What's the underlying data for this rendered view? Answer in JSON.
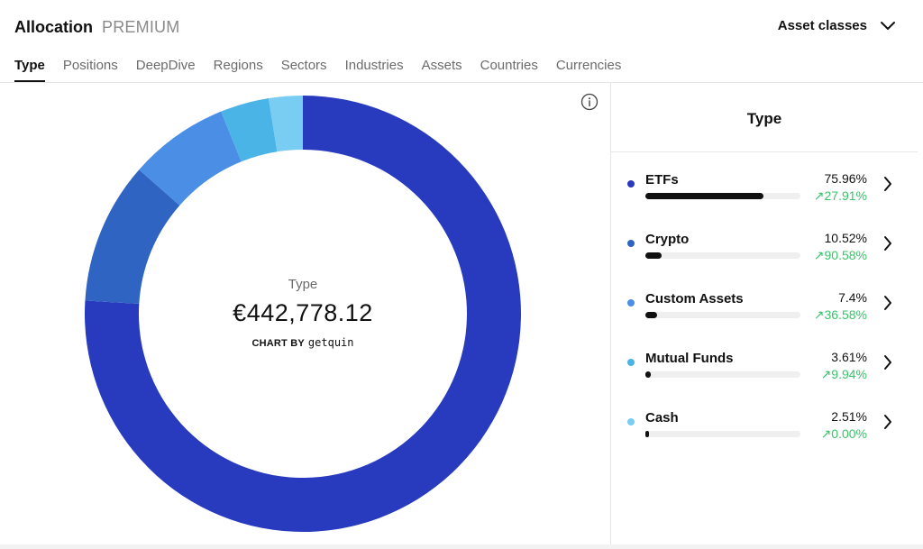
{
  "header": {
    "title": "Allocation",
    "badge": "PREMIUM",
    "selector_label": "Asset classes"
  },
  "tabs": [
    {
      "label": "Type",
      "active": true
    },
    {
      "label": "Positions",
      "active": false
    },
    {
      "label": "DeepDive",
      "active": false
    },
    {
      "label": "Regions",
      "active": false
    },
    {
      "label": "Sectors",
      "active": false
    },
    {
      "label": "Industries",
      "active": false
    },
    {
      "label": "Assets",
      "active": false
    },
    {
      "label": "Countries",
      "active": false
    },
    {
      "label": "Currencies",
      "active": false
    }
  ],
  "center": {
    "label": "Type",
    "value": "€442,778.12",
    "credit_prefix": "CHART BY",
    "credit_brand": "getquin"
  },
  "panel": {
    "title": "Type",
    "items": [
      {
        "name": "ETFs",
        "percent": "75.96%",
        "change": "↗27.91%",
        "share": 0.7596,
        "color": "#283bbf"
      },
      {
        "name": "Crypto",
        "percent": "10.52%",
        "change": "↗90.58%",
        "share": 0.1052,
        "color": "#2f64c2"
      },
      {
        "name": "Custom Assets",
        "percent": "7.4%",
        "change": "↗36.58%",
        "share": 0.074,
        "color": "#4a8ee6"
      },
      {
        "name": "Mutual Funds",
        "percent": "3.61%",
        "change": "↗9.94%",
        "share": 0.0361,
        "color": "#4bb4e6"
      },
      {
        "name": "Cash",
        "percent": "2.51%",
        "change": "↗0.00%",
        "share": 0.0251,
        "color": "#79ccf2"
      }
    ]
  },
  "chart_data": {
    "type": "pie",
    "title": "",
    "categories": [
      "ETFs",
      "Crypto",
      "Custom Assets",
      "Mutual Funds",
      "Cash"
    ],
    "values": [
      75.96,
      10.52,
      7.4,
      3.61,
      2.51
    ],
    "colors": [
      "#283bbf",
      "#2f64c2",
      "#4a8ee6",
      "#4bb4e6",
      "#79ccf2"
    ],
    "donut": true
  }
}
